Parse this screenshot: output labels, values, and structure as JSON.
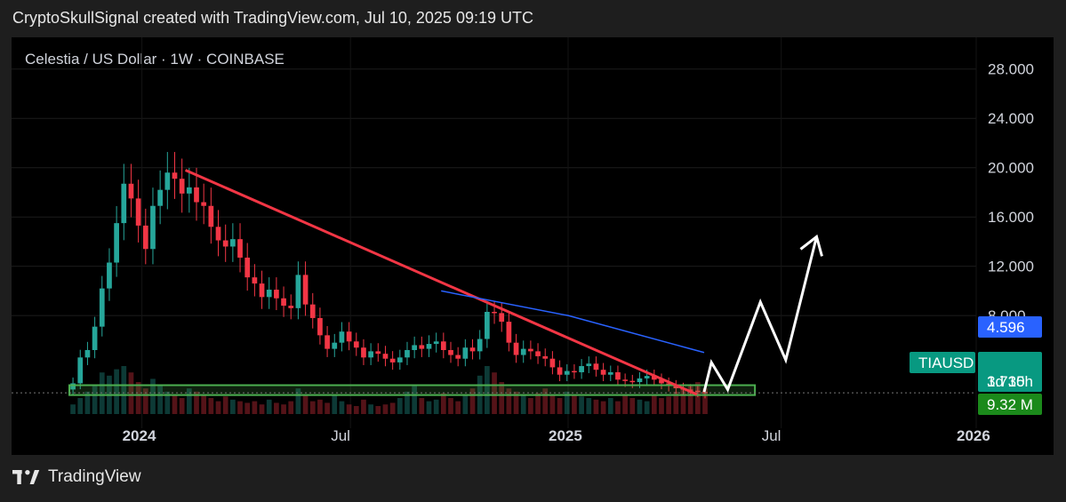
{
  "header": {
    "title": "CryptoSkullSignal created with TradingView.com, Jul 10, 2025 09:19 UTC"
  },
  "footer": {
    "brand": "TradingView",
    "logo_icon": "tradingview-logo-icon"
  },
  "chart_data": {
    "type": "candlestick",
    "title": "Celestia / US Dollar · 1W · COINBASE",
    "y_ticks": [
      "28.000",
      "24.000",
      "20.000",
      "16.000",
      "12.000",
      "8.000"
    ],
    "x_ticks": [
      "2024",
      "Jul",
      "2025",
      "Jul",
      "2026"
    ],
    "ylim": [
      -1,
      30
    ],
    "price_labels": {
      "ma": {
        "value": "4.596",
        "color": "#2962ff"
      },
      "symbol": "TIAUSD",
      "last": {
        "value": "1.730",
        "color": "#089981"
      },
      "countdown": "3d 15h",
      "volume": {
        "value": "9.32 M",
        "color": "#1b8a1b"
      }
    },
    "series": [
      {
        "name": "",
        "type": "candles",
        "up_color": "#26a69a",
        "down_color": "#f23645",
        "values": [
          2.5,
          4.6,
          5.2,
          7.1,
          10.2,
          12.3,
          15.5,
          18.7,
          17.5,
          15.3,
          13.4,
          16.9,
          18.2,
          19.6,
          19.1,
          17.9,
          18.4,
          17.2,
          16.9,
          15.2,
          14.1,
          13.6,
          14.2,
          12.7,
          11.1,
          10.6,
          9.5,
          10.1,
          9.4,
          8.8,
          8.6,
          11.3,
          8.9,
          7.8,
          6.4,
          5.3,
          5.8,
          6.7,
          5.9,
          5.4,
          4.6,
          5.1,
          4.9,
          4.5,
          4.2,
          4.6,
          5.2,
          5.6,
          5.3,
          5.7,
          5.9,
          5.2,
          4.8,
          4.5,
          5.4,
          5.1,
          6.1,
          8.3,
          8.2,
          7.5,
          5.8,
          4.8,
          5.3,
          5.1,
          4.7,
          4.5,
          3.8,
          3.2,
          3.5,
          3.4,
          3.9,
          4.1,
          3.6,
          3.2,
          3.4,
          2.8,
          2.7,
          2.6,
          2.9,
          3.1,
          2.8,
          2.5,
          2.3,
          2.1,
          2.0,
          1.9,
          1.8,
          1.7
        ]
      }
    ],
    "volume": [
      0.6,
      1.0,
      1.4,
      1.8,
      2.6,
      2.4,
      2.8,
      3.0,
      2.6,
      2.0,
      1.6,
      2.2,
      1.8,
      1.4,
      1.2,
      1.0,
      1.6,
      1.4,
      1.2,
      1.0,
      0.8,
      1.1,
      0.9,
      0.8,
      0.7,
      0.8,
      0.6,
      0.9,
      0.7,
      0.6,
      0.8,
      1.6,
      1.2,
      0.8,
      0.9,
      0.7,
      1.2,
      0.8,
      0.6,
      0.5,
      0.9,
      0.6,
      0.5,
      0.6,
      0.7,
      1.0,
      1.4,
      1.8,
      1.0,
      0.8,
      0.9,
      1.3,
      1.0,
      0.8,
      1.2,
      1.6,
      2.4,
      3.0,
      2.6,
      2.0,
      1.6,
      1.4,
      1.2,
      1.0,
      1.3,
      1.6,
      1.2,
      1.0,
      1.4,
      1.2,
      1.1,
      1.0,
      0.9,
      0.8,
      1.0,
      0.8,
      1.2,
      1.0,
      0.9,
      0.8,
      1.2,
      1.0,
      1.1,
      1.4,
      1.6,
      1.8,
      2.0,
      1.6
    ],
    "annotations": {
      "trendline": {
        "color": "#f23645",
        "from": [
          0.128,
          19.8
        ],
        "to": [
          0.692,
          1.6
        ]
      },
      "moving_average": {
        "color": "#2962ff",
        "points": [
          [
            0.41,
            10.0
          ],
          [
            0.55,
            8.0
          ],
          [
            0.68,
            5.4
          ],
          [
            0.7,
            5.0
          ]
        ]
      },
      "support_box": {
        "color": "#4caf50",
        "from": [
          0.0,
          2.35
        ],
        "to": [
          0.756,
          1.55
        ]
      },
      "projection": {
        "color": "#ffffff",
        "points": [
          [
            0.7,
            1.8
          ],
          [
            0.708,
            4.2
          ],
          [
            0.726,
            2.0
          ],
          [
            0.762,
            9.1
          ],
          [
            0.79,
            4.4
          ],
          [
            0.824,
            14.4
          ]
        ]
      }
    }
  }
}
